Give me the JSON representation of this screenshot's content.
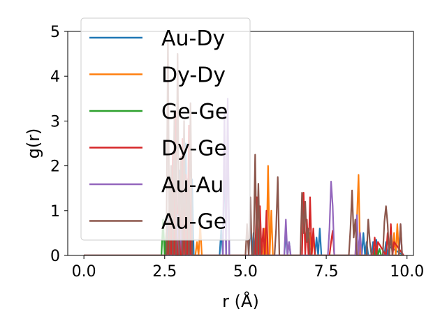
{
  "chart_data": {
    "type": "line",
    "xlabel": "r (Å)",
    "ylabel": "g(r)",
    "xlim": [
      -0.5,
      10.2
    ],
    "ylim": [
      0,
      5
    ],
    "xticks": [
      0.0,
      2.5,
      5.0,
      7.5,
      10.0
    ],
    "xtick_labels": [
      "0.0",
      "2.5",
      "5.0",
      "7.5",
      "10.0"
    ],
    "yticks": [
      0,
      1,
      2,
      3,
      4,
      5
    ],
    "ytick_labels": [
      "0",
      "1",
      "2",
      "3",
      "4",
      "5"
    ],
    "grid": false,
    "legend_position": "top-left",
    "series": [
      {
        "name": "Au-Dy",
        "color": "#1f77b4",
        "x": [
          0,
          2.55,
          2.6,
          2.65,
          2.7,
          2.75,
          2.8,
          2.85,
          2.9,
          2.95,
          3.0,
          3.05,
          3.1,
          3.15,
          3.2,
          3.25,
          3.3,
          3.35,
          3.4,
          4.2,
          4.25,
          4.3,
          4.35,
          4.4,
          4.45,
          4.5,
          4.55,
          5.1,
          5.15,
          5.2,
          5.25,
          5.3,
          5.35,
          5.4,
          5.45,
          5.5,
          6.2,
          6.25,
          6.3,
          6.35,
          6.4,
          7.15,
          7.2,
          7.25,
          7.3,
          7.35,
          7.4,
          8.6,
          8.65,
          8.7,
          8.75,
          8.8,
          8.9,
          8.95,
          9.0,
          9.05,
          9.1,
          9.3,
          9.35,
          9.4,
          9.45,
          9.9
        ],
        "y": [
          0,
          0,
          0.9,
          0,
          1.6,
          0,
          0,
          2.8,
          0,
          1.9,
          0,
          1.4,
          0,
          2.5,
          0,
          1.3,
          0,
          1.7,
          0,
          0,
          0.6,
          0,
          2.4,
          0,
          3.0,
          0,
          0,
          0,
          0.8,
          0,
          0.5,
          0,
          0.9,
          0,
          0.4,
          0,
          0,
          0.5,
          0,
          0.3,
          0,
          0,
          0.4,
          0,
          0.6,
          0,
          0,
          0,
          0.5,
          0,
          0.3,
          0,
          0,
          0.3,
          0,
          0.35,
          0,
          0,
          0.3,
          0,
          0.2,
          0
        ]
      },
      {
        "name": "Dy-Dy",
        "color": "#ff7f0e",
        "x": [
          0,
          3.45,
          3.5,
          3.55,
          3.6,
          3.65,
          3.7,
          5.55,
          5.6,
          5.65,
          5.7,
          5.75,
          5.8,
          5.85,
          5.9,
          6.95,
          7.0,
          7.05,
          7.1,
          7.15,
          8.4,
          8.45,
          8.5,
          8.55,
          8.6,
          9.55,
          9.6,
          9.65,
          9.7,
          9.75,
          9.8,
          9.9
        ],
        "y": [
          0,
          0,
          0.3,
          0,
          0.7,
          0,
          0,
          0,
          0.6,
          0,
          2.0,
          0,
          1.0,
          0,
          0,
          0,
          0.5,
          0,
          0.4,
          0,
          0,
          0.8,
          1.8,
          0,
          0,
          0,
          0.5,
          0,
          0.7,
          0,
          0,
          0
        ]
      },
      {
        "name": "Ge-Ge",
        "color": "#2ca02c",
        "x": [
          0,
          2.4,
          2.45,
          2.5,
          2.55,
          2.6,
          9.0,
          9.05,
          9.1,
          9.15,
          9.2,
          9.9
        ],
        "y": [
          0,
          0,
          0.8,
          0,
          0.5,
          0,
          0,
          0.2,
          0,
          0.15,
          0,
          0
        ]
      },
      {
        "name": "Dy-Ge",
        "color": "#d62728",
        "x": [
          0,
          2.6,
          2.65,
          2.7,
          2.75,
          2.8,
          2.85,
          2.9,
          2.95,
          3.0,
          3.05,
          3.1,
          3.15,
          3.2,
          3.25,
          3.3,
          3.35,
          5.3,
          5.35,
          5.4,
          5.45,
          5.5,
          5.55,
          5.6,
          5.65,
          5.7,
          5.75,
          6.75,
          6.8,
          6.85,
          6.9,
          6.95,
          7.0,
          7.05,
          7.1,
          7.15,
          7.6,
          7.65,
          7.7,
          7.75,
          8.95,
          9.0,
          9.05,
          9.1,
          9.35,
          9.4,
          9.45,
          9.5,
          9.55,
          9.6,
          9.9
        ],
        "y": [
          0,
          0,
          1.2,
          0,
          2.3,
          0,
          3.2,
          0,
          1.5,
          0,
          2.6,
          0,
          1.8,
          0,
          2.9,
          0,
          0,
          0,
          1.3,
          0,
          1.1,
          0,
          0.6,
          0,
          1.0,
          0,
          0,
          0,
          1.4,
          0,
          0.8,
          0,
          1.3,
          0,
          0.6,
          0,
          0,
          0.3,
          0.55,
          0,
          0,
          0.4,
          0,
          0.3,
          0,
          0.5,
          0,
          0.7,
          0,
          0.3,
          0
        ]
      },
      {
        "name": "Au-Au",
        "color": "#9467bd",
        "x": [
          0,
          2.85,
          2.9,
          2.95,
          3.0,
          3.05,
          4.3,
          4.35,
          4.4,
          4.45,
          4.5,
          4.55,
          6.2,
          6.25,
          6.3,
          6.35,
          6.4,
          7.55,
          7.6,
          7.65,
          7.7,
          7.75,
          7.8,
          8.4,
          8.45,
          8.5,
          8.55,
          8.6,
          9.75,
          9.8,
          9.85,
          9.9
        ],
        "y": [
          0,
          0,
          0.9,
          0,
          0.6,
          0,
          0,
          3.2,
          0,
          3.5,
          0,
          0,
          0,
          0.8,
          0,
          0.3,
          0,
          0,
          0.6,
          1.65,
          1.1,
          0,
          0,
          0,
          0.9,
          0,
          0.5,
          0,
          0,
          0.7,
          0,
          0
        ]
      },
      {
        "name": "Au-Ge",
        "color": "#8c564b",
        "x": [
          0,
          2.5,
          2.55,
          2.6,
          2.65,
          2.7,
          2.75,
          2.8,
          2.85,
          2.9,
          2.95,
          3.0,
          3.05,
          3.1,
          3.15,
          3.2,
          3.25,
          3.3,
          3.35,
          3.4,
          5.0,
          5.05,
          5.1,
          5.15,
          5.2,
          5.25,
          5.3,
          5.35,
          5.4,
          5.45,
          5.9,
          5.95,
          6.0,
          6.05,
          6.1,
          6.7,
          6.75,
          6.8,
          6.85,
          6.9,
          6.95,
          7.0,
          8.2,
          8.25,
          8.3,
          8.35,
          8.4,
          8.45,
          8.5,
          8.75,
          8.8,
          8.85,
          8.9,
          9.25,
          9.3,
          9.35,
          9.4,
          9.45,
          9.5,
          9.55,
          9.75,
          9.8,
          9.85,
          9.9
        ],
        "y": [
          0,
          0,
          0,
          4.8,
          0,
          2.0,
          0,
          3.1,
          0,
          4.5,
          0,
          2.2,
          0,
          3.0,
          0,
          1.7,
          0,
          3.4,
          0,
          0,
          0,
          0.7,
          0,
          1.3,
          0,
          0,
          2.25,
          0,
          1.6,
          0,
          0,
          0.6,
          1.75,
          0,
          0,
          0,
          1.4,
          0.5,
          1.2,
          0.3,
          0.6,
          0,
          0,
          0.6,
          1.45,
          0.4,
          0.8,
          0,
          0,
          0,
          0.8,
          0.3,
          0,
          0,
          0.75,
          1.1,
          0.7,
          0,
          0.45,
          0,
          0,
          0.7,
          0,
          0
        ]
      }
    ]
  }
}
